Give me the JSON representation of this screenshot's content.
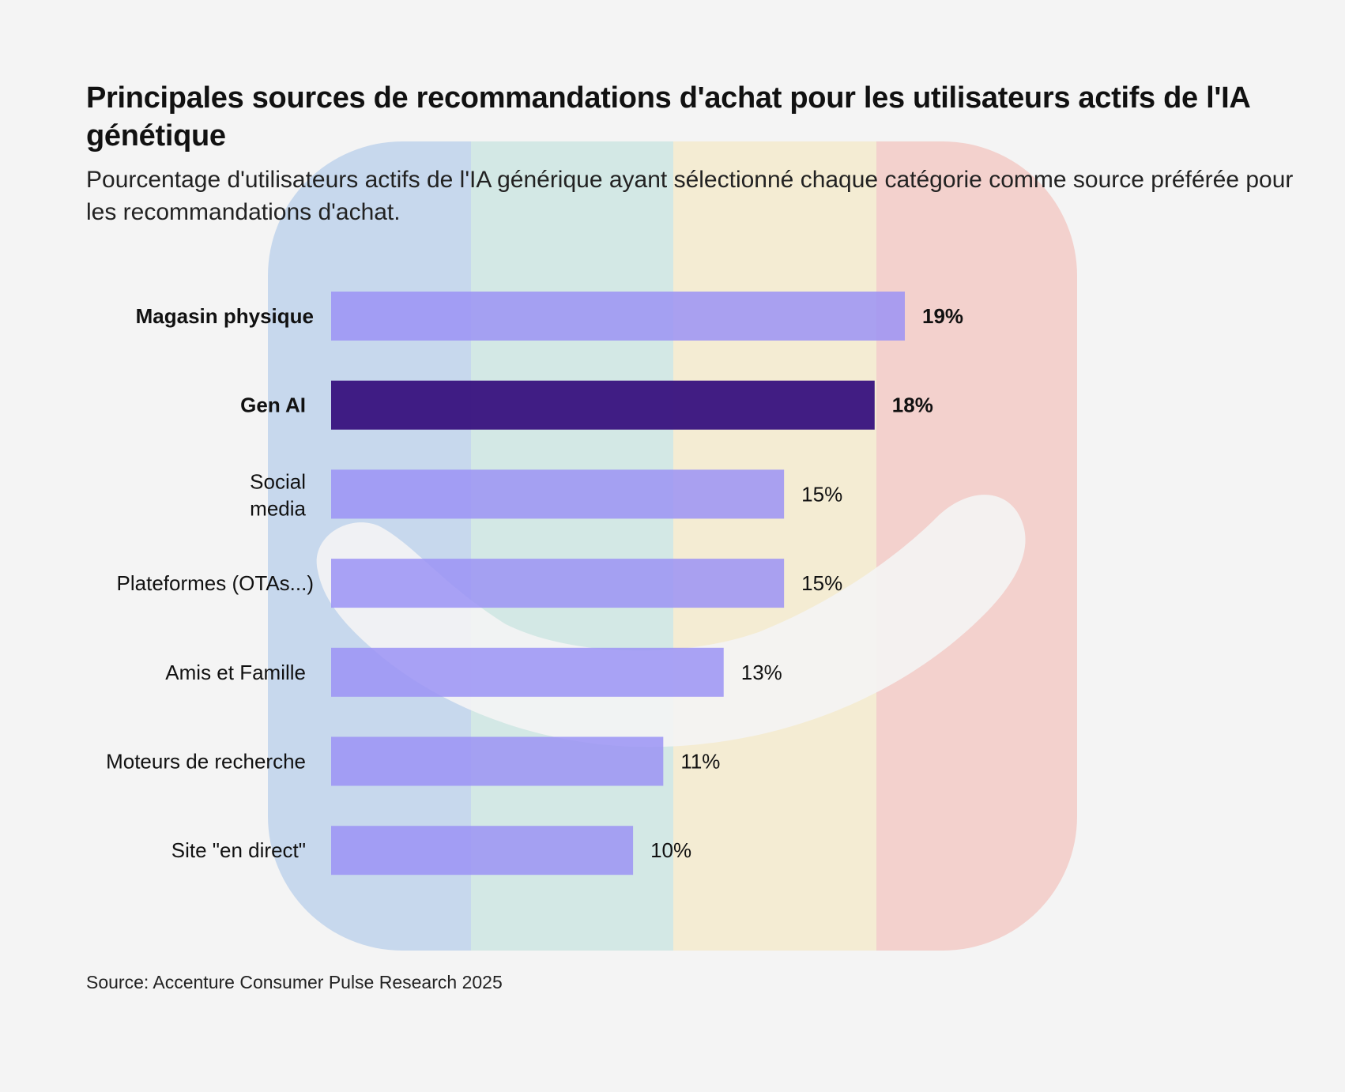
{
  "chart_data": {
    "type": "bar",
    "orientation": "horizontal",
    "title": "Principales sources de recommandations d'achat pour les utilisateurs actifs de l'IA génétique",
    "subtitle": "Pourcentage d'utilisateurs actifs de l'IA générique ayant sélectionné chaque catégorie comme source préférée pour les recommandations d'achat.",
    "categories": [
      [
        "Magasin physique"
      ],
      [
        "Gen AI"
      ],
      [
        "Social",
        "media"
      ],
      [
        "Plateformes (OTAs...)"
      ],
      [
        "Amis et Famille"
      ],
      [
        "Moteurs de recherche"
      ],
      [
        "Site \"en direct\""
      ]
    ],
    "values": [
      19,
      18,
      15,
      15,
      13,
      11,
      10
    ],
    "value_labels": [
      "19%",
      "18%",
      "15%",
      "15%",
      "13%",
      "11%",
      "10%"
    ],
    "bold": [
      true,
      true,
      false,
      false,
      false,
      false,
      false
    ],
    "highlight_index": 1,
    "xlim": [
      0,
      19
    ],
    "grid": false,
    "legend": "none",
    "colors": {
      "bar": "#9b93f5",
      "highlight": "#3b1680",
      "label": "#111111"
    }
  },
  "source": "Source: Accenture Consumer Pulse Research 2025",
  "background": {
    "logo_colors": [
      "#c7d8ed",
      "#d3e8e5",
      "#f4ecd3",
      "#f3d1cd"
    ],
    "smile_color": "#f4f4f4"
  }
}
